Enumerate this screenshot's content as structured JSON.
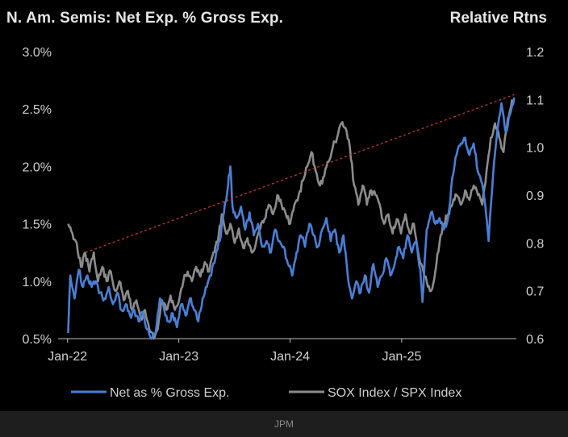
{
  "chart_data": {
    "type": "line",
    "title": "N. Am. Semis: Net Exp. % Gross Exp.",
    "right_axis_title": "Relative Rtns",
    "x_ticks": [
      "Jan-22",
      "Jan-23",
      "Jan-24",
      "Jan-25"
    ],
    "left_axis": {
      "min": 0.5,
      "max": 3.0,
      "ticks": [
        "0.5%",
        "1.0%",
        "1.5%",
        "2.0%",
        "2.5%",
        "3.0%"
      ]
    },
    "right_axis": {
      "min": 0.6,
      "max": 1.2,
      "ticks": [
        "0.6",
        "0.7",
        "0.8",
        "0.9",
        "1.0",
        "1.1",
        "1.2"
      ]
    },
    "legend_position": "bottom",
    "series": [
      {
        "name": "Net as % Gross Exp.",
        "axis": "left",
        "color": "#4a7fd6",
        "points": [
          [
            "2022-01-03",
            0.55
          ],
          [
            "2022-01-10",
            1.05
          ],
          [
            "2022-01-24",
            0.85
          ],
          [
            "2022-02-07",
            1.1
          ],
          [
            "2022-02-21",
            0.95
          ],
          [
            "2022-03-07",
            1.05
          ],
          [
            "2022-03-21",
            0.95
          ],
          [
            "2022-04-04",
            1.0
          ],
          [
            "2022-04-18",
            0.9
          ],
          [
            "2022-05-02",
            0.85
          ],
          [
            "2022-05-16",
            0.95
          ],
          [
            "2022-05-30",
            0.8
          ],
          [
            "2022-06-13",
            0.9
          ],
          [
            "2022-06-27",
            0.75
          ],
          [
            "2022-07-11",
            0.8
          ],
          [
            "2022-07-25",
            0.7
          ],
          [
            "2022-08-08",
            0.75
          ],
          [
            "2022-08-22",
            0.65
          ],
          [
            "2022-09-05",
            0.72
          ],
          [
            "2022-09-19",
            0.58
          ],
          [
            "2022-10-03",
            0.5
          ],
          [
            "2022-10-17",
            0.55
          ],
          [
            "2022-10-31",
            0.85
          ],
          [
            "2022-11-14",
            0.75
          ],
          [
            "2022-11-28",
            0.65
          ],
          [
            "2022-12-12",
            0.72
          ],
          [
            "2022-12-26",
            0.6
          ],
          [
            "2023-01-09",
            0.8
          ],
          [
            "2023-01-23",
            0.7
          ],
          [
            "2023-02-06",
            0.85
          ],
          [
            "2023-02-20",
            0.75
          ],
          [
            "2023-03-06",
            0.65
          ],
          [
            "2023-03-20",
            0.85
          ],
          [
            "2023-04-03",
            0.95
          ],
          [
            "2023-04-17",
            1.05
          ],
          [
            "2023-05-01",
            1.2
          ],
          [
            "2023-05-15",
            1.35
          ],
          [
            "2023-05-29",
            1.6
          ],
          [
            "2023-06-12",
            1.85
          ],
          [
            "2023-06-19",
            2.0
          ],
          [
            "2023-06-26",
            1.65
          ],
          [
            "2023-07-10",
            1.55
          ],
          [
            "2023-07-24",
            1.65
          ],
          [
            "2023-08-07",
            1.45
          ],
          [
            "2023-08-21",
            1.6
          ],
          [
            "2023-09-04",
            1.4
          ],
          [
            "2023-09-18",
            1.5
          ],
          [
            "2023-10-02",
            1.3
          ],
          [
            "2023-10-16",
            1.35
          ],
          [
            "2023-10-30",
            1.25
          ],
          [
            "2023-11-13",
            1.45
          ],
          [
            "2023-11-27",
            1.35
          ],
          [
            "2023-12-11",
            1.3
          ],
          [
            "2023-12-25",
            1.15
          ],
          [
            "2024-01-08",
            1.05
          ],
          [
            "2024-01-22",
            1.25
          ],
          [
            "2024-02-05",
            1.4
          ],
          [
            "2024-02-19",
            1.3
          ],
          [
            "2024-03-04",
            1.5
          ],
          [
            "2024-03-18",
            1.4
          ],
          [
            "2024-04-01",
            1.3
          ],
          [
            "2024-04-15",
            1.45
          ],
          [
            "2024-04-29",
            1.55
          ],
          [
            "2024-05-13",
            1.35
          ],
          [
            "2024-05-27",
            1.45
          ],
          [
            "2024-06-10",
            1.25
          ],
          [
            "2024-06-24",
            1.4
          ],
          [
            "2024-07-08",
            1.05
          ],
          [
            "2024-07-22",
            0.85
          ],
          [
            "2024-08-05",
            1.0
          ],
          [
            "2024-08-19",
            0.9
          ],
          [
            "2024-09-02",
            1.05
          ],
          [
            "2024-09-16",
            0.9
          ],
          [
            "2024-09-30",
            1.15
          ],
          [
            "2024-10-14",
            0.95
          ],
          [
            "2024-10-28",
            1.05
          ],
          [
            "2024-11-11",
            1.2
          ],
          [
            "2024-11-25",
            1.05
          ],
          [
            "2024-12-09",
            1.15
          ],
          [
            "2024-12-23",
            1.3
          ],
          [
            "2025-01-06",
            1.2
          ],
          [
            "2025-01-20",
            1.4
          ],
          [
            "2025-02-03",
            1.25
          ],
          [
            "2025-02-17",
            1.35
          ],
          [
            "2025-03-03",
            1.1
          ],
          [
            "2025-03-10",
            0.82
          ],
          [
            "2025-03-24",
            1.45
          ],
          [
            "2025-04-07",
            1.6
          ],
          [
            "2025-04-21",
            1.5
          ],
          [
            "2025-05-05",
            1.55
          ],
          [
            "2025-05-19",
            1.45
          ],
          [
            "2025-06-02",
            1.55
          ],
          [
            "2025-06-16",
            1.9
          ],
          [
            "2025-06-30",
            2.1
          ],
          [
            "2025-07-14",
            2.2
          ],
          [
            "2025-07-28",
            2.25
          ],
          [
            "2025-08-11",
            2.1
          ],
          [
            "2025-08-25",
            2.2
          ],
          [
            "2025-09-08",
            1.95
          ],
          [
            "2025-09-22",
            1.85
          ],
          [
            "2025-10-06",
            1.55
          ],
          [
            "2025-10-13",
            1.35
          ],
          [
            "2025-10-27",
            1.9
          ],
          [
            "2025-11-10",
            2.3
          ],
          [
            "2025-11-24",
            2.55
          ],
          [
            "2025-12-08",
            2.3
          ],
          [
            "2025-12-22",
            2.45
          ],
          [
            "2026-01-05",
            2.6
          ]
        ]
      },
      {
        "name": "SOX Index / SPX Index",
        "axis": "right",
        "color": "#8c8c8c",
        "points": [
          [
            "2022-01-03",
            0.84
          ],
          [
            "2022-01-17",
            0.82
          ],
          [
            "2022-01-31",
            0.8
          ],
          [
            "2022-02-14",
            0.75
          ],
          [
            "2022-02-28",
            0.78
          ],
          [
            "2022-03-14",
            0.74
          ],
          [
            "2022-03-28",
            0.78
          ],
          [
            "2022-04-11",
            0.72
          ],
          [
            "2022-04-25",
            0.75
          ],
          [
            "2022-05-09",
            0.72
          ],
          [
            "2022-05-23",
            0.74
          ],
          [
            "2022-06-06",
            0.7
          ],
          [
            "2022-06-20",
            0.72
          ],
          [
            "2022-07-04",
            0.68
          ],
          [
            "2022-07-18",
            0.7
          ],
          [
            "2022-08-01",
            0.66
          ],
          [
            "2022-08-15",
            0.68
          ],
          [
            "2022-08-29",
            0.64
          ],
          [
            "2022-09-12",
            0.66
          ],
          [
            "2022-09-26",
            0.62
          ],
          [
            "2022-10-10",
            0.6
          ],
          [
            "2022-10-24",
            0.62
          ],
          [
            "2022-11-07",
            0.68
          ],
          [
            "2022-11-21",
            0.66
          ],
          [
            "2022-12-05",
            0.69
          ],
          [
            "2022-12-19",
            0.66
          ],
          [
            "2023-01-02",
            0.68
          ],
          [
            "2023-01-16",
            0.72
          ],
          [
            "2023-01-30",
            0.74
          ],
          [
            "2023-02-13",
            0.72
          ],
          [
            "2023-02-27",
            0.75
          ],
          [
            "2023-03-13",
            0.73
          ],
          [
            "2023-03-27",
            0.76
          ],
          [
            "2023-04-10",
            0.74
          ],
          [
            "2023-04-24",
            0.78
          ],
          [
            "2023-05-08",
            0.8
          ],
          [
            "2023-05-22",
            0.86
          ],
          [
            "2023-06-05",
            0.82
          ],
          [
            "2023-06-19",
            0.84
          ],
          [
            "2023-07-03",
            0.8
          ],
          [
            "2023-07-17",
            0.83
          ],
          [
            "2023-07-31",
            0.79
          ],
          [
            "2023-08-14",
            0.81
          ],
          [
            "2023-08-28",
            0.78
          ],
          [
            "2023-09-11",
            0.8
          ],
          [
            "2023-09-25",
            0.83
          ],
          [
            "2023-10-09",
            0.85
          ],
          [
            "2023-10-23",
            0.88
          ],
          [
            "2023-11-06",
            0.86
          ],
          [
            "2023-11-20",
            0.9
          ],
          [
            "2023-12-04",
            0.88
          ],
          [
            "2023-12-18",
            0.86
          ],
          [
            "2024-01-01",
            0.84
          ],
          [
            "2024-01-15",
            0.88
          ],
          [
            "2024-01-29",
            0.9
          ],
          [
            "2024-02-12",
            0.93
          ],
          [
            "2024-02-26",
            0.96
          ],
          [
            "2024-03-11",
            0.99
          ],
          [
            "2024-03-25",
            0.95
          ],
          [
            "2024-04-08",
            0.92
          ],
          [
            "2024-04-22",
            0.94
          ],
          [
            "2024-05-06",
            0.97
          ],
          [
            "2024-05-20",
            1.0
          ],
          [
            "2024-06-03",
            1.02
          ],
          [
            "2024-06-17",
            1.05
          ],
          [
            "2024-07-01",
            1.04
          ],
          [
            "2024-07-15",
            1.0
          ],
          [
            "2024-07-29",
            0.92
          ],
          [
            "2024-08-12",
            0.88
          ],
          [
            "2024-08-26",
            0.92
          ],
          [
            "2024-09-09",
            0.88
          ],
          [
            "2024-09-23",
            0.91
          ],
          [
            "2024-10-07",
            0.9
          ],
          [
            "2024-10-21",
            0.88
          ],
          [
            "2024-11-04",
            0.84
          ],
          [
            "2024-11-18",
            0.86
          ],
          [
            "2024-12-02",
            0.82
          ],
          [
            "2024-12-16",
            0.85
          ],
          [
            "2024-12-30",
            0.82
          ],
          [
            "2025-01-13",
            0.86
          ],
          [
            "2025-01-27",
            0.82
          ],
          [
            "2025-02-10",
            0.84
          ],
          [
            "2025-02-24",
            0.78
          ],
          [
            "2025-03-10",
            0.75
          ],
          [
            "2025-03-24",
            0.72
          ],
          [
            "2025-04-07",
            0.7
          ],
          [
            "2025-04-21",
            0.74
          ],
          [
            "2025-05-05",
            0.8
          ],
          [
            "2025-05-19",
            0.84
          ],
          [
            "2025-06-02",
            0.86
          ],
          [
            "2025-06-16",
            0.88
          ],
          [
            "2025-06-30",
            0.9
          ],
          [
            "2025-07-14",
            0.88
          ],
          [
            "2025-07-28",
            0.91
          ],
          [
            "2025-08-11",
            0.89
          ],
          [
            "2025-08-25",
            0.92
          ],
          [
            "2025-09-08",
            0.9
          ],
          [
            "2025-09-22",
            0.88
          ],
          [
            "2025-10-06",
            0.95
          ],
          [
            "2025-10-20",
            1.02
          ],
          [
            "2025-11-03",
            1.05
          ],
          [
            "2025-11-17",
            1.02
          ],
          [
            "2025-12-01",
            0.99
          ],
          [
            "2025-12-15",
            1.06
          ],
          [
            "2025-12-29",
            1.1
          ]
        ]
      }
    ],
    "trendline": {
      "axis": "right",
      "color": "#c0392b",
      "style": "dashed",
      "from": [
        "2022-03-01",
        0.78
      ],
      "to": [
        "2026-01-05",
        1.11
      ]
    }
  },
  "footer": {
    "source": "JPM"
  }
}
